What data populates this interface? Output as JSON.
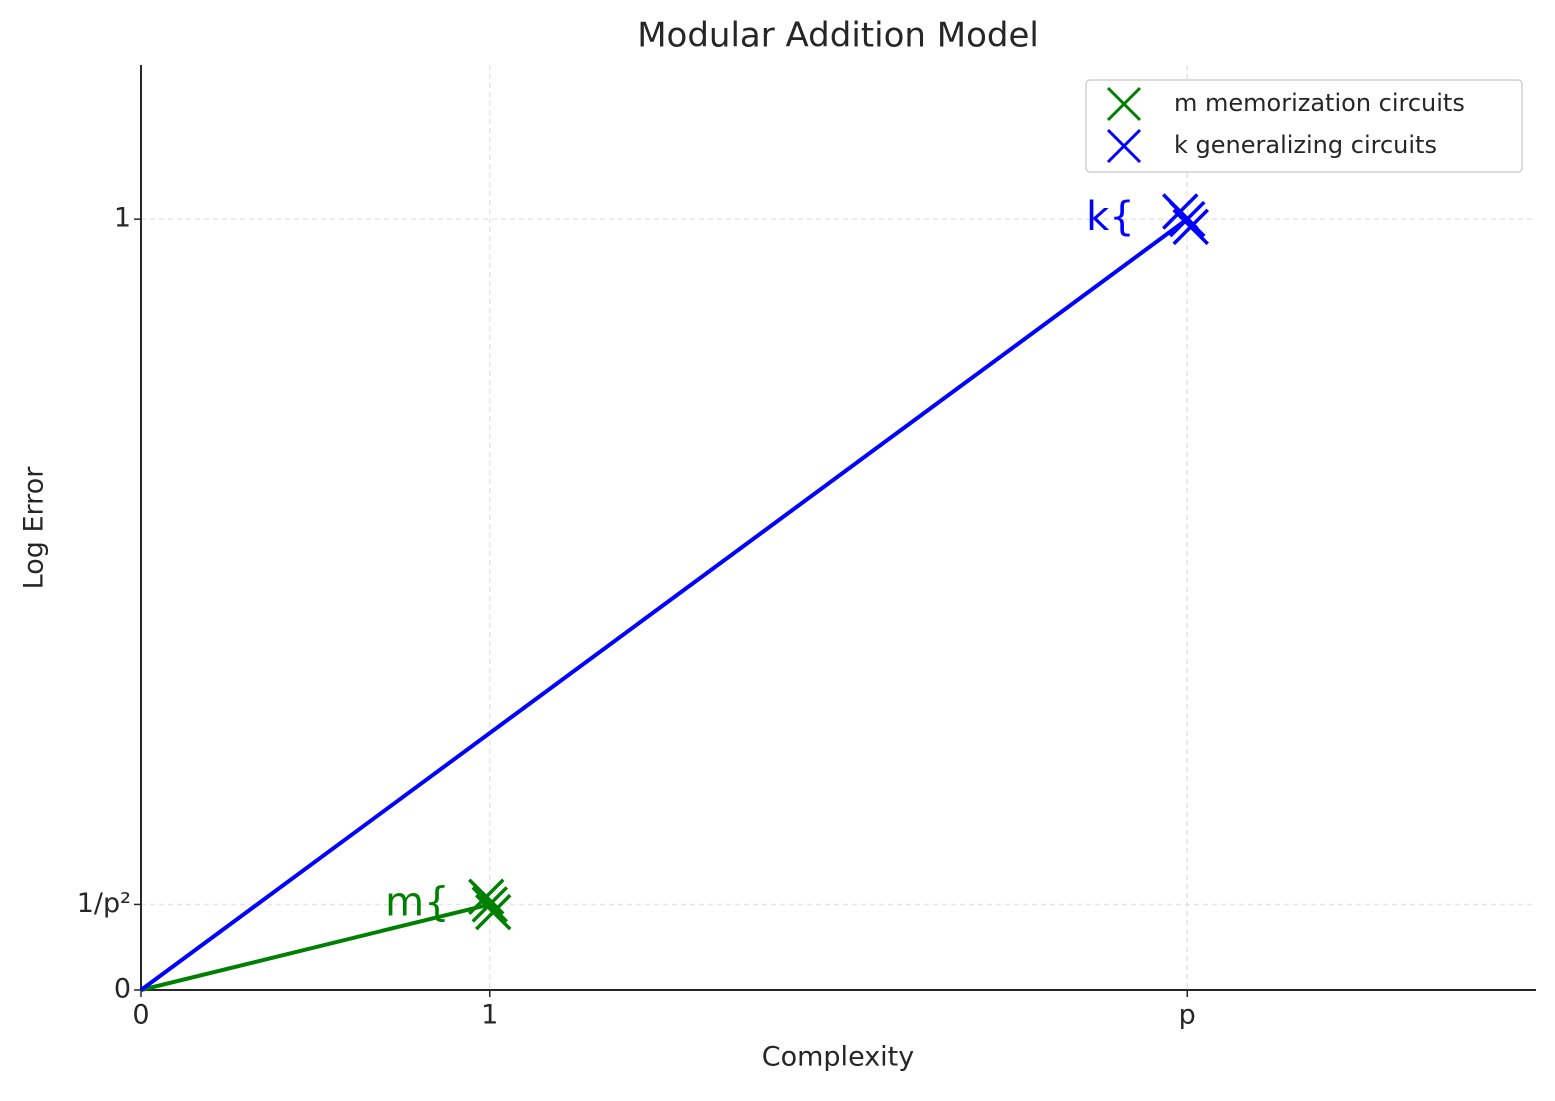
{
  "chart_data": {
    "type": "scatter",
    "title": "Modular Addition Model",
    "xlabel": "Complexity",
    "ylabel": "Log Error",
    "xlim": [
      0,
      4
    ],
    "ylim": [
      0,
      1.2
    ],
    "xticks": [
      0,
      1,
      {
        "value": 3,
        "label": "p"
      }
    ],
    "yticks": [
      0,
      {
        "value": 0.111,
        "label": "1/p²"
      },
      1
    ],
    "grid": true,
    "legend": "upper right",
    "lines": [
      {
        "color": "#008000",
        "x": [
          0,
          1
        ],
        "y": [
          0,
          0.111
        ]
      },
      {
        "color": "#0000ff",
        "x": [
          0,
          3
        ],
        "y": [
          0,
          1
        ]
      }
    ],
    "series": [
      {
        "name": "m memorization circuits",
        "color": "#008000",
        "x": [
          0.99,
          1,
          1.01
        ],
        "y": [
          0.121,
          0.111,
          0.101
        ]
      },
      {
        "name": "k generalizing circuits",
        "color": "#0000ff",
        "x": [
          2.98,
          3,
          3.01
        ],
        "y": [
          1.01,
          1,
          0.99
        ]
      }
    ],
    "annotations": [
      {
        "text": "m{",
        "x": 0.7,
        "y": 0.111,
        "color": "#008000"
      },
      {
        "text": "k{",
        "x": 2.71,
        "y": 1,
        "color": "#0000ff"
      }
    ]
  }
}
